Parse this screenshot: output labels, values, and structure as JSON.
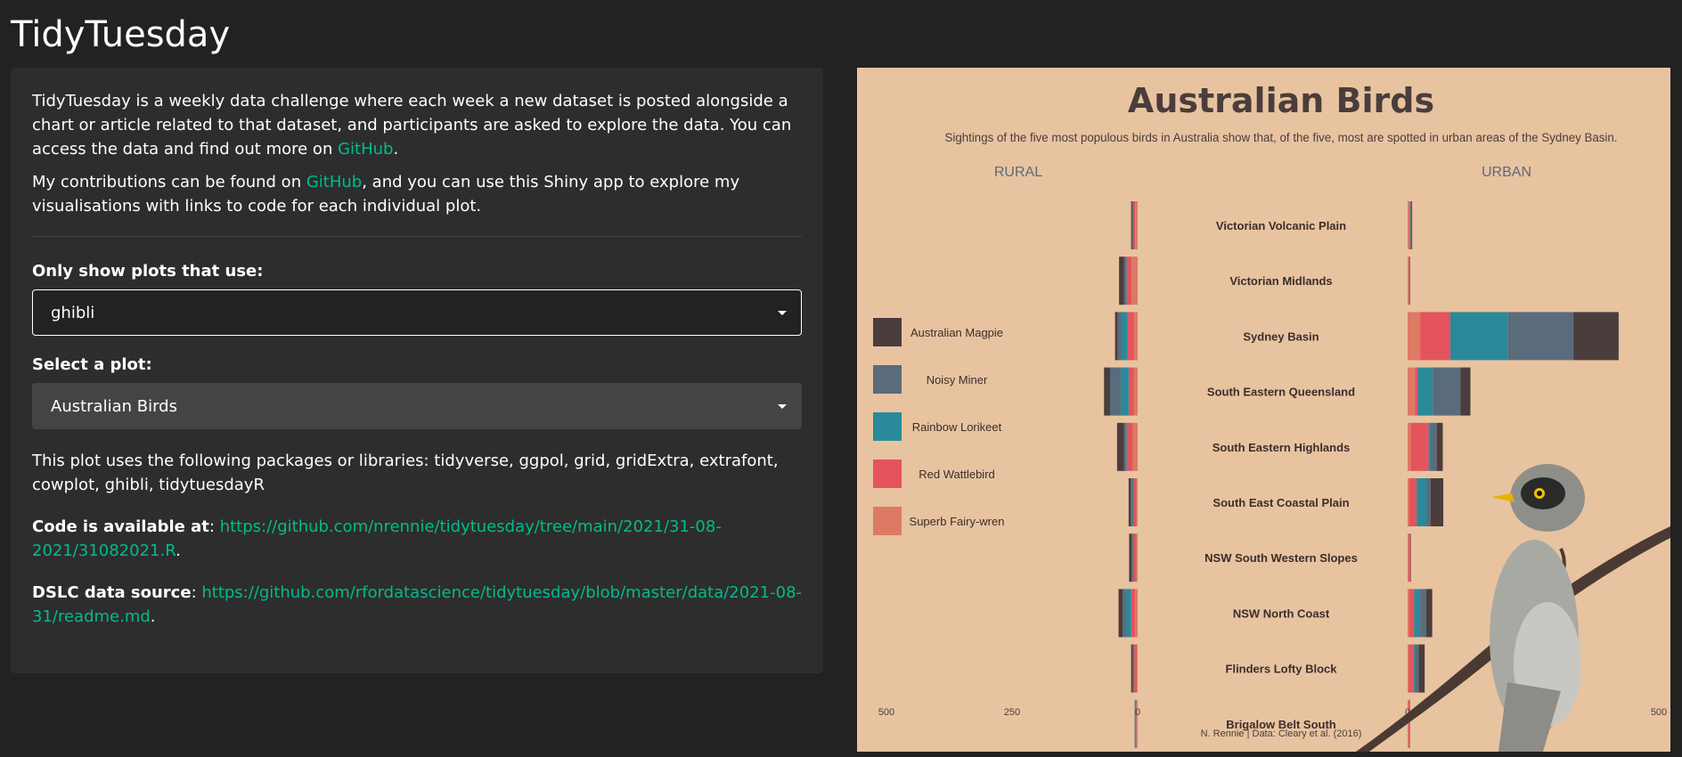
{
  "app": {
    "title": "TidyTuesday"
  },
  "intro": {
    "p1_before": "TidyTuesday is a weekly data challenge where each week a new dataset is posted alongside a chart or article related to that dataset, and participants are asked to explore the data. You can access the data and find out more on ",
    "p1_link": "GitHub",
    "p1_after": ".",
    "p2_before": "My contributions can be found on ",
    "p2_link": "GitHub",
    "p2_after": ", and you can use this Shiny app to explore my visualisations with links to code for each individual plot."
  },
  "filter": {
    "label": "Only show plots that use:",
    "value": "ghibli"
  },
  "plot_select": {
    "label": "Select a plot:",
    "value": "Australian Birds"
  },
  "packages_text": "This plot uses the following packages or libraries: tidyverse, ggpol, grid, gridExtra, extrafont, cowplot, ghibli, tidytuesdayR",
  "code": {
    "label": "Code is available at",
    "url": "https://github.com/nrennie/tidytuesday/tree/main/2021/31-08-2021/31082021.R"
  },
  "source": {
    "label": "DSLC data source",
    "url": "https://github.com/rfordatascience/tidytuesday/blob/master/data/2021-08-31/readme.md"
  },
  "colors": {
    "accent": "#00bc8c",
    "plot_bg": "#e8c3a0",
    "Australian Magpie": "#4a3d3c",
    "Noisy Miner": "#5a6b7c",
    "Rainbow Lorikeet": "#2a8a99",
    "Red Wattlebird": "#e3545d",
    "Superb Fairy-wren": "#dd7a63"
  },
  "chart_data": {
    "type": "bar",
    "title": "Australian Birds",
    "subtitle": "Sightings of the five most populous birds in Australia show that, of the five, most are spotted in urban areas of the Sydney Basin.",
    "left_label": "RURAL",
    "right_label": "URBAN",
    "caption": "N. Rennie | Data: Cleary et al. (2016)",
    "ticks": [
      "500",
      "250",
      "0"
    ],
    "xlim": [
      0,
      500
    ],
    "legend_position": "left",
    "categories": [
      "Victorian Volcanic Plain",
      "Victorian Midlands",
      "Sydney Basin",
      "South Eastern Queensland",
      "South Eastern Highlands",
      "South East Coastal Plain",
      "NSW South Western Slopes",
      "NSW North Coast",
      "Flinders Lofty Block",
      "Brigalow Belt South"
    ],
    "series": [
      {
        "name": "Superb Fairy-wren",
        "rural": [
          5,
          12,
          8,
          8,
          10,
          3,
          3,
          5,
          2,
          2
        ],
        "urban": [
          3,
          2,
          25,
          15,
          6,
          3,
          2,
          3,
          2,
          2
        ]
      },
      {
        "name": "Red Wattlebird",
        "rural": [
          3,
          10,
          12,
          10,
          12,
          5,
          5,
          8,
          5,
          1
        ],
        "urban": [
          2,
          1,
          60,
          5,
          36,
          15,
          4,
          10,
          10,
          2
        ]
      },
      {
        "name": "Rainbow Lorikeet",
        "rural": [
          1,
          2,
          12,
          15,
          2,
          2,
          1,
          10,
          1,
          1
        ],
        "urban": [
          1,
          0,
          115,
          30,
          4,
          20,
          0,
          12,
          2,
          0
        ]
      },
      {
        "name": "Noisy Miner",
        "rural": [
          2,
          3,
          8,
          22,
          3,
          4,
          3,
          7,
          2,
          2
        ],
        "urban": [
          2,
          1,
          130,
          55,
          12,
          8,
          1,
          12,
          8,
          1
        ]
      },
      {
        "name": "Australian Magpie",
        "rural": [
          2,
          10,
          5,
          12,
          14,
          4,
          5,
          8,
          3,
          0
        ],
        "urban": [
          1,
          1,
          90,
          20,
          12,
          25,
          0,
          12,
          12,
          0
        ]
      }
    ]
  }
}
